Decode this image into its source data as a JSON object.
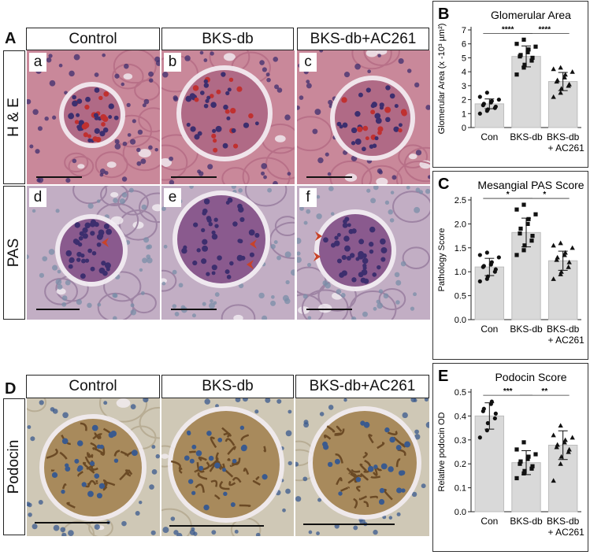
{
  "panel_A": {
    "letter": "A",
    "columns": [
      "Control",
      "BKS-db",
      "BKS-db+AC261"
    ],
    "rows": [
      "H & E",
      "PAS"
    ],
    "he_sublabels": [
      "a",
      "b",
      "c"
    ],
    "pas_sublabels": [
      "d",
      "e",
      "f"
    ]
  },
  "panel_D": {
    "letter": "D",
    "columns": [
      "Control",
      "BKS-db",
      "BKS-db+AC261"
    ],
    "row": "Podocin"
  },
  "colors": {
    "he_bg": "#c9889a",
    "he_glom": "#b06a86",
    "nucleus": "#3d2e6e",
    "rbc": "#c03030",
    "pas_bg": "#c2aec4",
    "pas_glom": "#8a5a8e",
    "arrow": "#c8432a",
    "ihc_bg": "#cfc8b6",
    "ihc_brown": "#6b4a25",
    "ihc_nucleus": "#3a5a8e",
    "bar_fill": "#d9d9d9"
  },
  "chart_data": [
    {
      "panel": "B",
      "type": "bar",
      "title": "Glomerular Area",
      "ylabel": "Glomerular Area (x -10³ µm²)",
      "categories": [
        "Con",
        "BKS-db",
        "BKS-db\n+ AC261"
      ],
      "values": [
        1.7,
        5.1,
        3.3
      ],
      "errors": [
        0.35,
        0.75,
        0.65
      ],
      "ylim": [
        0,
        7
      ],
      "yticks": [
        0,
        1,
        2,
        3,
        4,
        5,
        6,
        7
      ],
      "markers": [
        "circle",
        "square",
        "triangle"
      ],
      "points": [
        [
          1.0,
          1.2,
          1.3,
          1.4,
          1.5,
          1.6,
          1.7,
          1.8,
          1.9,
          2.0,
          2.2,
          2.5
        ],
        [
          3.8,
          4.3,
          4.5,
          4.8,
          5.0,
          5.1,
          5.2,
          5.4,
          5.6,
          5.8,
          6.0,
          6.3
        ],
        [
          2.2,
          2.5,
          2.8,
          3.0,
          3.1,
          3.3,
          3.4,
          3.6,
          3.8,
          4.0,
          4.2,
          4.3
        ]
      ],
      "significance": [
        {
          "from": 0,
          "to": 1,
          "label": "****"
        },
        {
          "from": 1,
          "to": 2,
          "label": "****"
        }
      ]
    },
    {
      "panel": "C",
      "type": "bar",
      "title": "Mesangial PAS Score",
      "ylabel": "Pathology Score",
      "categories": [
        "Con",
        "BKS-db",
        "BKS-db\n+ AC261"
      ],
      "values": [
        1.1,
        1.82,
        1.23
      ],
      "errors": [
        0.18,
        0.3,
        0.2
      ],
      "ylim": [
        0,
        2.5
      ],
      "yticks": [
        0.0,
        0.5,
        1.0,
        1.5,
        2.0,
        2.5
      ],
      "markers": [
        "circle",
        "square",
        "triangle"
      ],
      "points": [
        [
          0.8,
          0.85,
          0.9,
          1.0,
          1.05,
          1.1,
          1.12,
          1.15,
          1.2,
          1.3,
          1.35,
          1.4
        ],
        [
          1.35,
          1.45,
          1.55,
          1.65,
          1.75,
          1.8,
          1.9,
          2.0,
          2.1,
          2.2,
          2.3,
          2.4
        ],
        [
          0.85,
          0.95,
          1.0,
          1.1,
          1.2,
          1.25,
          1.3,
          1.35,
          1.4,
          1.5,
          1.55,
          1.6
        ]
      ],
      "significance": [
        {
          "from": 0,
          "to": 1,
          "label": "*"
        },
        {
          "from": 1,
          "to": 2,
          "label": "*"
        }
      ]
    },
    {
      "panel": "E",
      "type": "bar",
      "title": "Podocin Score",
      "ylabel": "Relative podocin OD",
      "categories": [
        "Con",
        "BKS-db",
        "BKS-db\n+ AC261"
      ],
      "values": [
        0.4,
        0.205,
        0.278
      ],
      "errors": [
        0.055,
        0.05,
        0.06
      ],
      "ylim": [
        0,
        0.5
      ],
      "yticks": [
        0.0,
        0.1,
        0.2,
        0.3,
        0.4,
        0.5
      ],
      "markers": [
        "circle",
        "square",
        "triangle"
      ],
      "points": [
        [
          0.31,
          0.34,
          0.37,
          0.39,
          0.41,
          0.42,
          0.43,
          0.45,
          0.46
        ],
        [
          0.14,
          0.16,
          0.17,
          0.18,
          0.19,
          0.2,
          0.21,
          0.22,
          0.23,
          0.24,
          0.26,
          0.29
        ],
        [
          0.13,
          0.2,
          0.23,
          0.25,
          0.26,
          0.27,
          0.28,
          0.29,
          0.3,
          0.31,
          0.32,
          0.36
        ]
      ],
      "significance": [
        {
          "from": 0,
          "to": 1,
          "label": "***"
        },
        {
          "from": 1,
          "to": 2,
          "label": "**"
        }
      ]
    }
  ]
}
